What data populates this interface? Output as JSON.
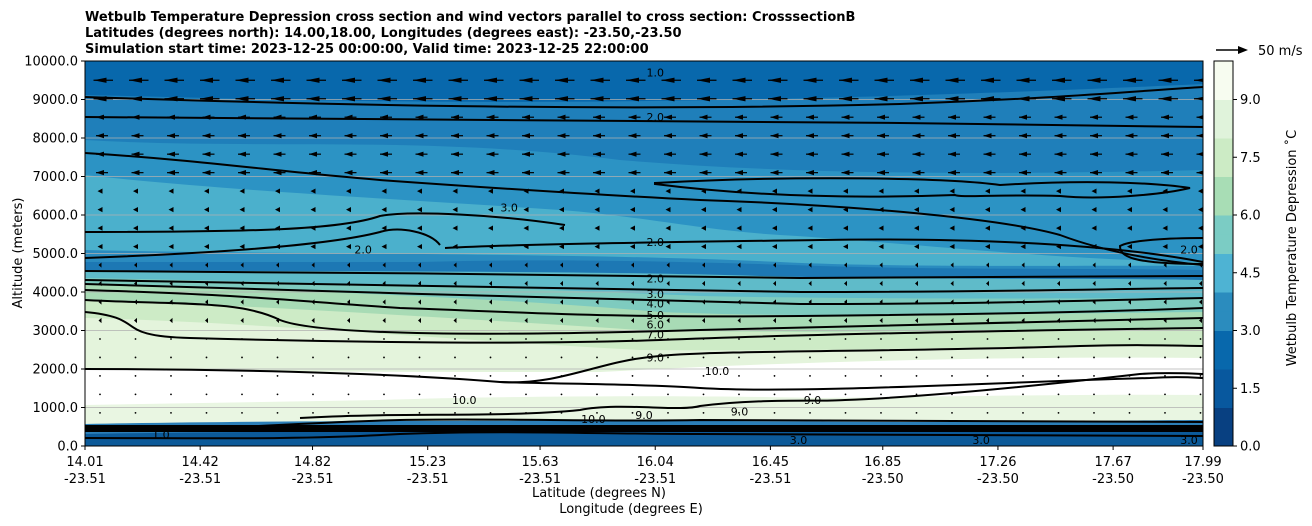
{
  "chart_data": {
    "type": "contour",
    "title_lines": [
      "Wetbulb Temperature Depression cross section and wind vectors parallel to cross section: CrosssectionB",
      "Latitudes (degrees north): 14.00,18.00, Longitudes (degrees east): -23.50,-23.50",
      "Simulation start time: 2023-12-25 00:00:00, Valid time: 2023-12-25 22:00:00"
    ],
    "xlabel_lines": [
      "Latitude (degrees N)",
      "Longitude (degrees E)"
    ],
    "ylabel": "Altitude (meters)",
    "x_ticks": [
      {
        "lat": "14.01",
        "lon": "-23.51"
      },
      {
        "lat": "14.42",
        "lon": "-23.51"
      },
      {
        "lat": "14.82",
        "lon": "-23.51"
      },
      {
        "lat": "15.23",
        "lon": "-23.51"
      },
      {
        "lat": "15.63",
        "lon": "-23.51"
      },
      {
        "lat": "16.04",
        "lon": "-23.51"
      },
      {
        "lat": "16.45",
        "lon": "-23.51"
      },
      {
        "lat": "16.85",
        "lon": "-23.50"
      },
      {
        "lat": "17.26",
        "lon": "-23.50"
      },
      {
        "lat": "17.67",
        "lon": "-23.50"
      },
      {
        "lat": "17.99",
        "lon": "-23.50"
      }
    ],
    "x_range": [
      14.01,
      17.99
    ],
    "y_ticks": [
      "0.0",
      "1000.0",
      "2000.0",
      "3000.0",
      "4000.0",
      "5000.0",
      "6000.0",
      "7000.0",
      "8000.0",
      "9000.0",
      "10000.0"
    ],
    "y_range": [
      0,
      10000
    ],
    "grid": "horizontal",
    "colorbar": {
      "label": "Wetbulb Temperature Depression ˚C",
      "ticks": [
        "0.0",
        "1.5",
        "3.0",
        "4.5",
        "6.0",
        "7.5",
        "9.0"
      ],
      "range": [
        0,
        10
      ],
      "colormap": "GnBu_r"
    },
    "quiver_key": {
      "label": "50 m/s"
    },
    "contour_labels": [
      {
        "text": "1.0",
        "lat": 16.04,
        "alt": 9700
      },
      {
        "text": "2.0",
        "lat": 16.04,
        "alt": 8550
      },
      {
        "text": "3.0",
        "lat": 15.52,
        "alt": 6200
      },
      {
        "text": "2.0",
        "lat": 15.0,
        "alt": 5100
      },
      {
        "text": "2.0",
        "lat": 16.04,
        "alt": 5300
      },
      {
        "text": "2.0",
        "lat": 17.94,
        "alt": 5100
      },
      {
        "text": "2.0",
        "lat": 16.04,
        "alt": 4350
      },
      {
        "text": "3.0",
        "lat": 16.04,
        "alt": 3950
      },
      {
        "text": "4.0",
        "lat": 16.04,
        "alt": 3700
      },
      {
        "text": "5.0",
        "lat": 16.04,
        "alt": 3400
      },
      {
        "text": "6.0",
        "lat": 16.04,
        "alt": 3150
      },
      {
        "text": "7.0",
        "lat": 16.04,
        "alt": 2900
      },
      {
        "text": "9.0",
        "lat": 16.04,
        "alt": 2300
      },
      {
        "text": "10.0",
        "lat": 16.26,
        "alt": 1950
      },
      {
        "text": "10.0",
        "lat": 15.36,
        "alt": 1200
      },
      {
        "text": "9.0",
        "lat": 16.6,
        "alt": 1200
      },
      {
        "text": "9.0",
        "lat": 16.34,
        "alt": 900
      },
      {
        "text": "10.0",
        "lat": 15.82,
        "alt": 700
      },
      {
        "text": "9.0",
        "lat": 16.0,
        "alt": 800
      },
      {
        "text": "1.0",
        "lat": 14.28,
        "alt": 300
      },
      {
        "text": "3.0",
        "lat": 16.55,
        "alt": 150
      },
      {
        "text": "3.0",
        "lat": 17.2,
        "alt": 150
      },
      {
        "text": "3.0",
        "lat": 17.94,
        "alt": 150
      }
    ]
  }
}
